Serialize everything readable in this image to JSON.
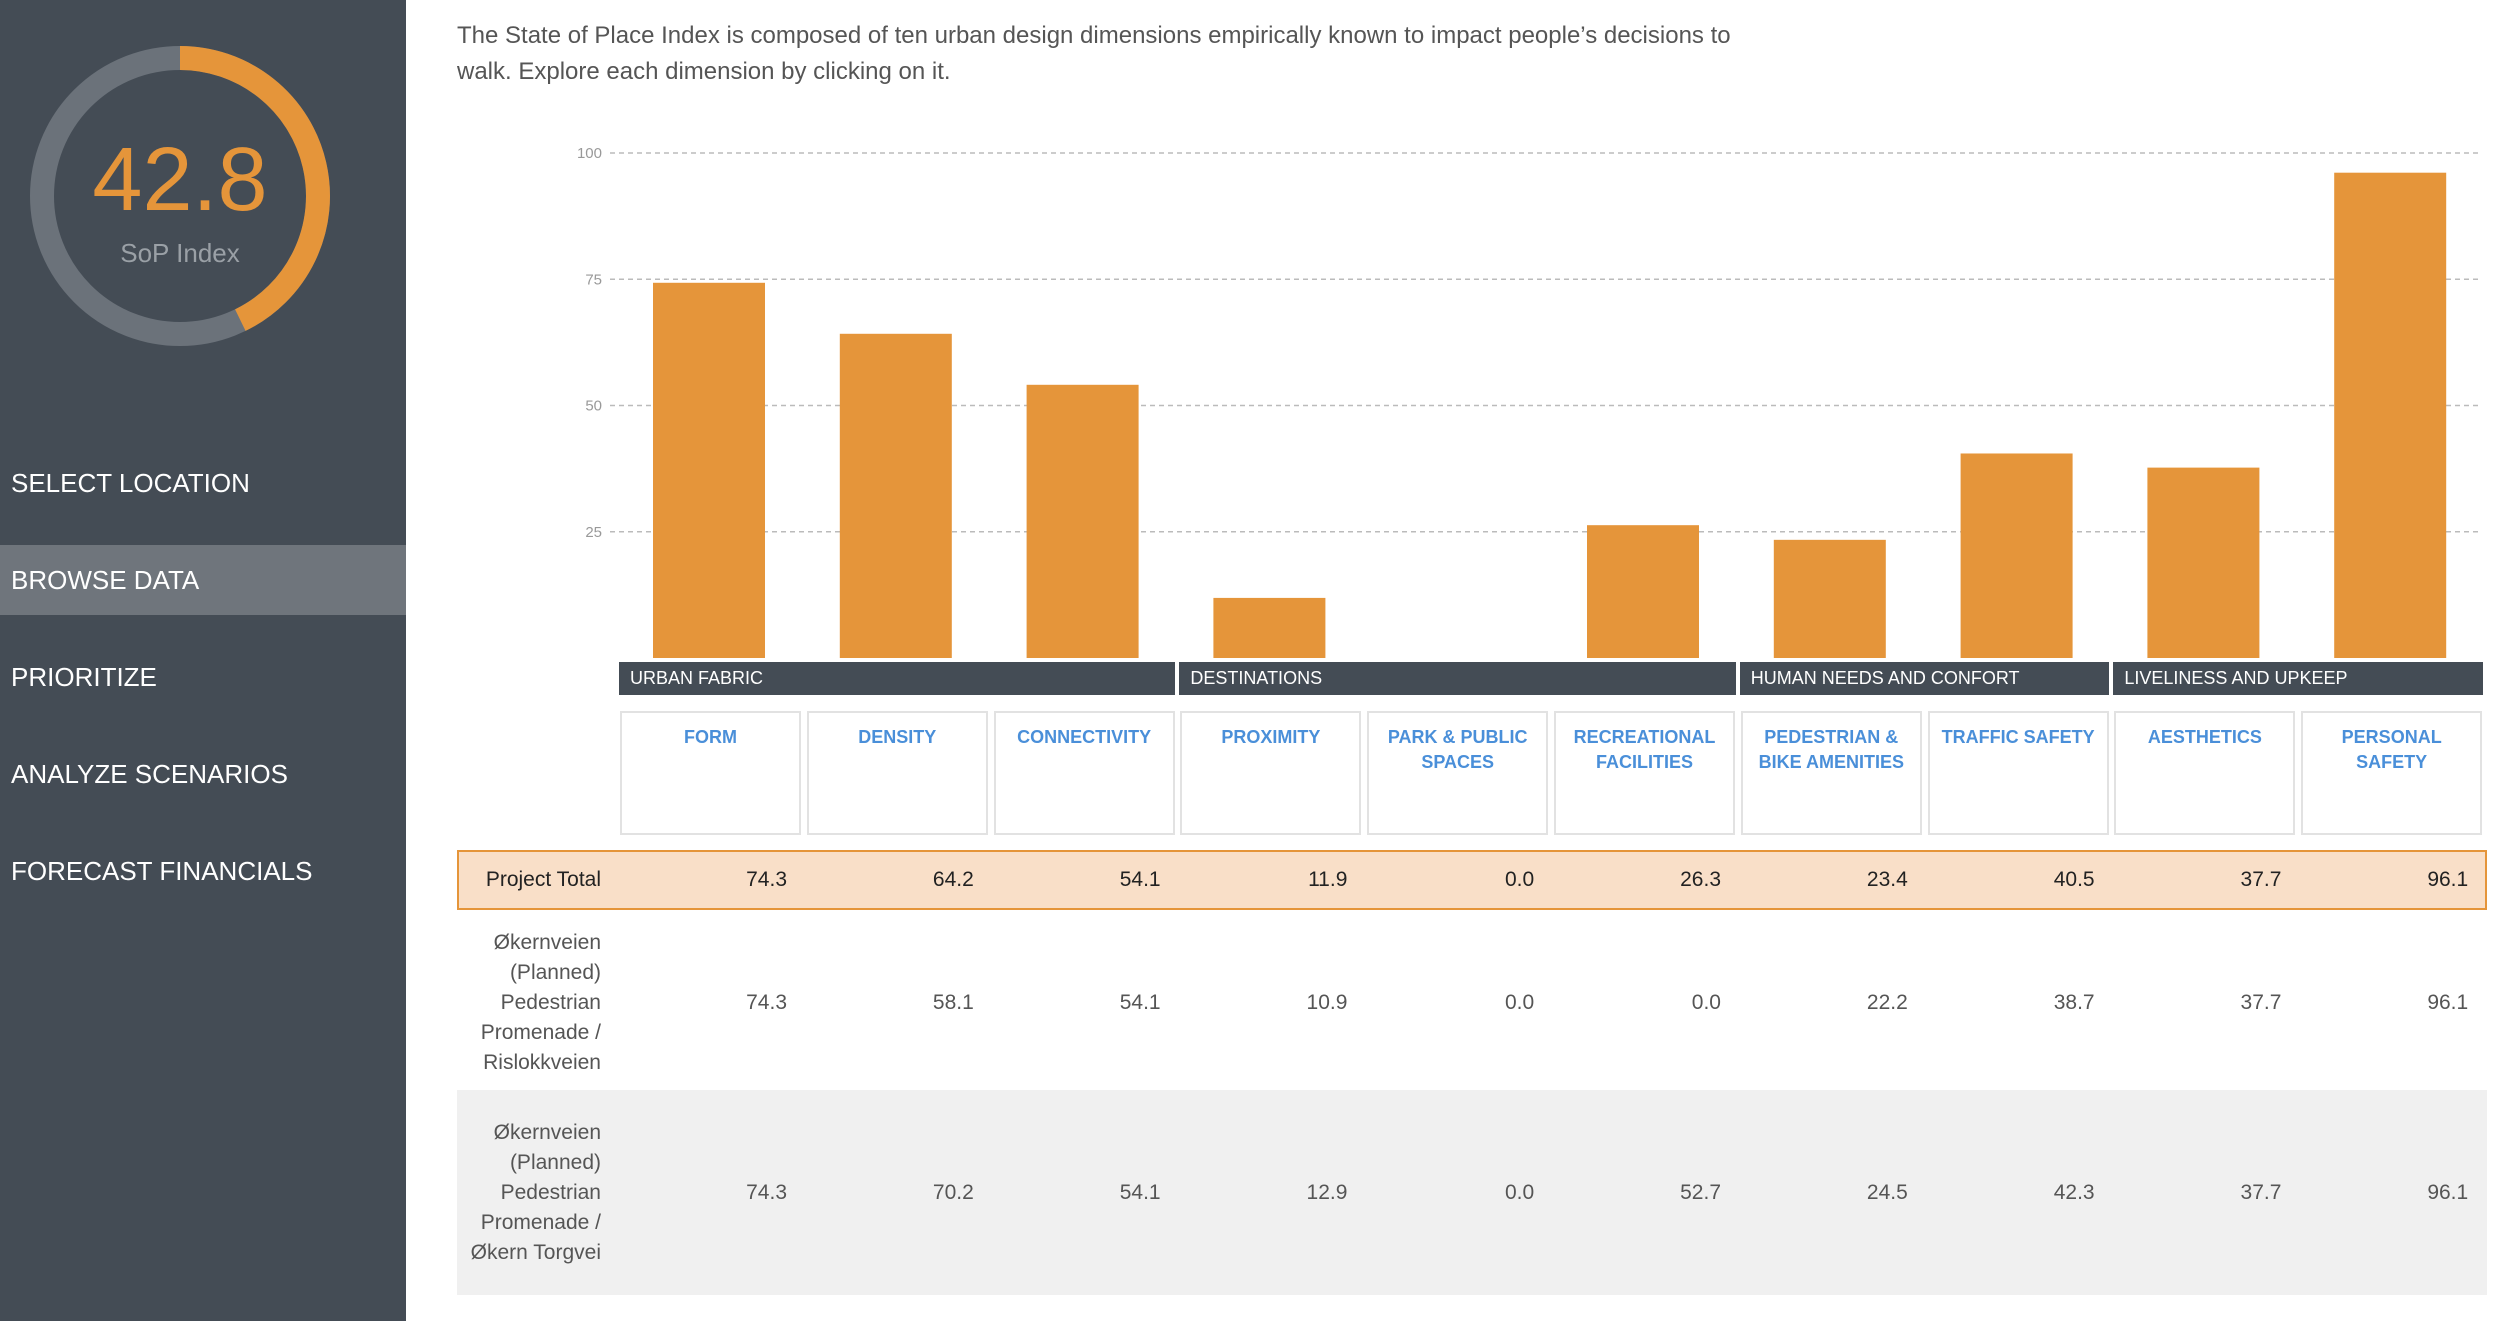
{
  "sidebar": {
    "score": 42.8,
    "score_label": "SoP Index",
    "nav": [
      "SELECT LOCATION",
      "BROWSE DATA",
      "PRIORITIZE",
      "ANALYZE SCENARIOS",
      "FORECAST FINANCIALS"
    ]
  },
  "intro": "The State of Place Index is composed of ten urban design dimensions empirically known to impact people’s decisions to walk. Explore each dimension by clicking on it.",
  "chart_data": {
    "type": "bar",
    "color": "#e5953a",
    "groups": [
      {
        "label": "URBAN FABRIC",
        "categories": [
          "FORM",
          "DENSITY",
          "CONNECTIVITY"
        ]
      },
      {
        "label": "DESTINATIONS",
        "categories": [
          "PROXIMITY",
          "PARK & PUBLIC SPACES",
          "RECREATIONAL FACILITIES"
        ]
      },
      {
        "label": "HUMAN NEEDS AND CONFORT",
        "categories": [
          "PEDESTRIAN & BIKE AMENITIES",
          "TRAFFIC SAFETY"
        ]
      },
      {
        "label": "LIVELINESS AND UPKEEP",
        "categories": [
          "AESTHETICS",
          "PERSONAL SAFETY"
        ]
      }
    ],
    "values": [
      74.3,
      64.2,
      54.1,
      11.9,
      0,
      26.3,
      23.4,
      40.5,
      37.7,
      96.1
    ],
    "ylim": [
      0,
      100
    ],
    "yticks": [
      25,
      50,
      75,
      100
    ],
    "grid": true
  },
  "table": {
    "rows": [
      {
        "label": "Project Total",
        "values": [
          "74.3",
          "64.2",
          "54.1",
          "11.9",
          "0.0",
          "26.3",
          "23.4",
          "40.5",
          "37.7",
          "96.1"
        ]
      },
      {
        "label": "Økernveien (Planned) Pedestrian Promenade / Rislokkveien",
        "values": [
          "74.3",
          "58.1",
          "54.1",
          "10.9",
          "0.0",
          "0.0",
          "22.2",
          "38.7",
          "37.7",
          "96.1"
        ]
      },
      {
        "label": "Økernveien (Planned) Pedestrian Promenade / Økern Torgvei",
        "values": [
          "74.3",
          "70.2",
          "54.1",
          "12.9",
          "0.0",
          "52.7",
          "24.5",
          "42.3",
          "37.7",
          "96.1"
        ]
      }
    ]
  }
}
